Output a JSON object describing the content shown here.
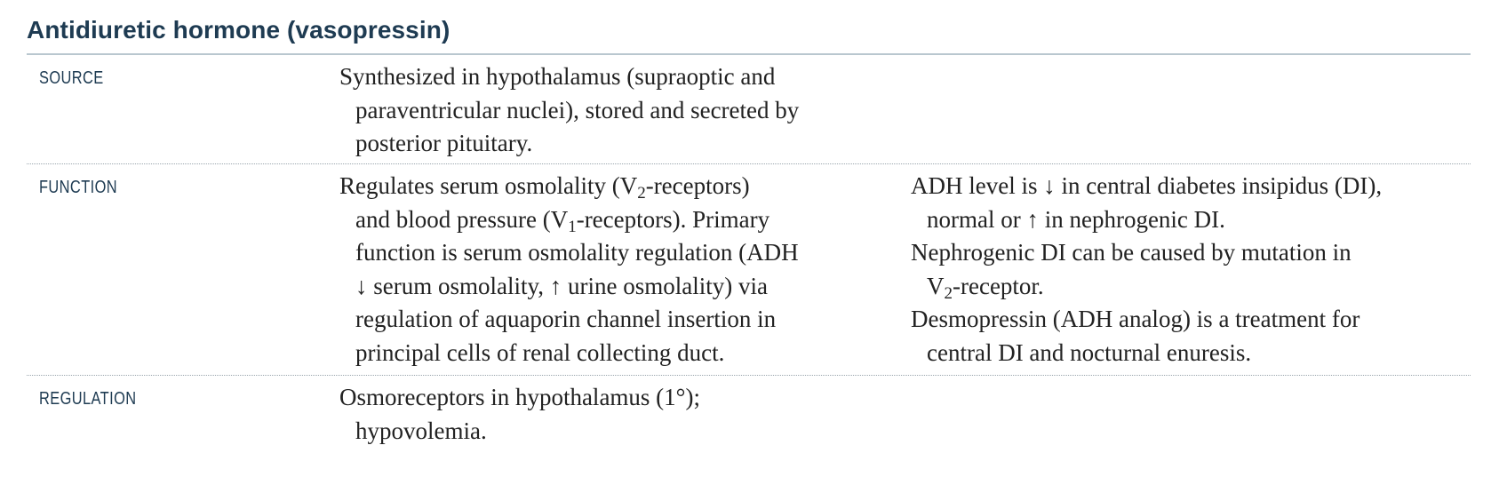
{
  "title": "Antidiuretic hormone (vasopressin)",
  "rows": {
    "source": {
      "label": "SOURCE",
      "main": [
        "Synthesized in hypothalamus (supraoptic and",
        "paraventricular nuclei), stored and secreted by",
        "posterior pituitary."
      ]
    },
    "function": {
      "label": "FUNCTION",
      "main": {
        "l1a": "Regulates serum osmolality (V",
        "l1sub": "2",
        "l1b": "-receptors)",
        "l2a": "and blood pressure (V",
        "l2sub": "1",
        "l2b": "-receptors). Primary",
        "l3": "function is serum osmolality regulation (ADH",
        "l4": "↓ serum osmolality, ↑ urine osmolality) via",
        "l5": "regulation of aquaporin channel insertion in",
        "l6": "principal cells of renal collecting duct."
      },
      "notes": {
        "n1a": "ADH level is ↓ in central diabetes insipidus (DI),",
        "n1b": "normal or ↑ in nephrogenic DI.",
        "n2a": "Nephrogenic DI can be caused by mutation in",
        "n2b_pre": "V",
        "n2b_sub": "2",
        "n2b_post": "-receptor.",
        "n3a": "Desmopressin (ADH analog) is a treatment for",
        "n3b": "central DI and nocturnal enuresis."
      }
    },
    "regulation": {
      "label": "REGULATION",
      "main": [
        "Osmoreceptors in hypothalamus (1°);",
        "hypovolemia."
      ]
    }
  }
}
